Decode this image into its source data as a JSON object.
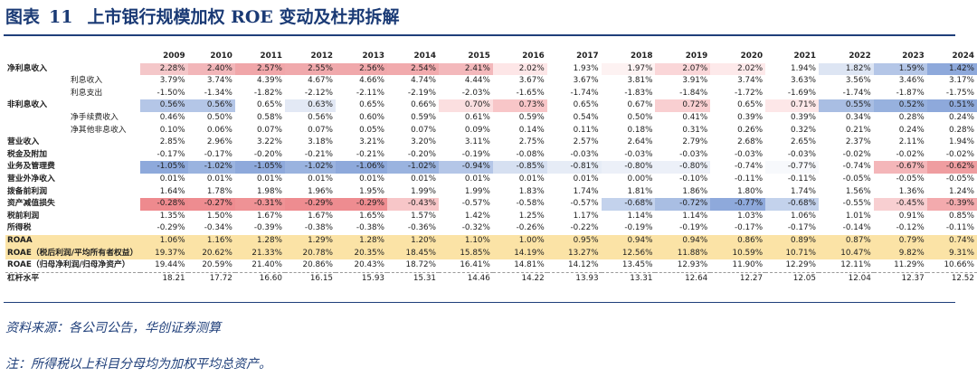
{
  "title": {
    "prefix": "图表",
    "number": "11",
    "text": "上市银行规模加权 ROE 变动及杜邦拆解"
  },
  "table": {
    "columns": [
      "2009",
      "2010",
      "2011",
      "2012",
      "2013",
      "2014",
      "2015",
      "2016",
      "2017",
      "2018",
      "2019",
      "2020",
      "2021",
      "2022",
      "2023",
      "2024"
    ],
    "rows": [
      {
        "label": "净利息收入",
        "style": "bold",
        "values": [
          "2.28%",
          "2.40%",
          "2.57%",
          "2.55%",
          "2.56%",
          "2.54%",
          "2.41%",
          "2.02%",
          "1.93%",
          "1.97%",
          "2.07%",
          "2.02%",
          "1.94%",
          "1.82%",
          "1.59%",
          "1.42%"
        ],
        "colors": [
          "#f4c7c9",
          "#f2b6b9",
          "#f0a6a9",
          "#f0a9ac",
          "#f0a8ab",
          "#f1aaad",
          "#f3b8bb",
          "#fde6e7",
          "#ffffff",
          "#fdf2f2",
          "#fad6d8",
          "#fde9ea",
          "#ffffff",
          "#dde5f3",
          "#b4c6e7",
          "#8ea9db"
        ]
      },
      {
        "label": "利息收入",
        "style": "sub",
        "values": [
          "3.79%",
          "3.74%",
          "4.39%",
          "4.67%",
          "4.66%",
          "4.74%",
          "4.44%",
          "3.67%",
          "3.67%",
          "3.81%",
          "3.91%",
          "3.74%",
          "3.63%",
          "3.56%",
          "3.46%",
          "3.17%"
        ]
      },
      {
        "label": "利息支出",
        "style": "sub",
        "values": [
          "-1.50%",
          "-1.34%",
          "-1.82%",
          "-2.12%",
          "-2.11%",
          "-2.19%",
          "-2.03%",
          "-1.65%",
          "-1.74%",
          "-1.83%",
          "-1.84%",
          "-1.72%",
          "-1.69%",
          "-1.74%",
          "-1.87%",
          "-1.75%"
        ]
      },
      {
        "label": "非利息收入",
        "style": "bold",
        "values": [
          "0.56%",
          "0.56%",
          "0.65%",
          "0.63%",
          "0.65%",
          "0.66%",
          "0.70%",
          "0.73%",
          "0.65%",
          "0.67%",
          "0.72%",
          "0.65%",
          "0.71%",
          "0.55%",
          "0.52%",
          "0.51%"
        ],
        "colors": [
          "#b4c6e7",
          "#b4c6e7",
          "#ffffff",
          "#e3e9f5",
          "#ffffff",
          "#ffffff",
          "#fbdfe0",
          "#f8c6c8",
          "#ffffff",
          "#ffffff",
          "#f9cfd1",
          "#ffffff",
          "#fde7e8",
          "#a9bee3",
          "#97b1de",
          "#8ea9db"
        ]
      },
      {
        "label": "净手续费收入",
        "style": "sub",
        "values": [
          "0.46%",
          "0.50%",
          "0.58%",
          "0.56%",
          "0.60%",
          "0.59%",
          "0.61%",
          "0.59%",
          "0.54%",
          "0.50%",
          "0.41%",
          "0.39%",
          "0.39%",
          "0.34%",
          "0.28%",
          "0.24%"
        ]
      },
      {
        "label": "净其他非息收入",
        "style": "sub",
        "values": [
          "0.10%",
          "0.06%",
          "0.07%",
          "0.07%",
          "0.05%",
          "0.07%",
          "0.09%",
          "0.14%",
          "0.11%",
          "0.18%",
          "0.31%",
          "0.26%",
          "0.32%",
          "0.21%",
          "0.24%",
          "0.28%"
        ]
      },
      {
        "label": "营业收入",
        "style": "bold",
        "values": [
          "2.85%",
          "2.96%",
          "3.22%",
          "3.18%",
          "3.21%",
          "3.20%",
          "3.11%",
          "2.75%",
          "2.57%",
          "2.64%",
          "2.79%",
          "2.68%",
          "2.65%",
          "2.37%",
          "2.11%",
          "1.94%"
        ]
      },
      {
        "label": "税金及附加",
        "style": "bold",
        "values": [
          "-0.17%",
          "-0.17%",
          "-0.20%",
          "-0.21%",
          "-0.21%",
          "-0.20%",
          "-0.19%",
          "-0.08%",
          "-0.03%",
          "-0.03%",
          "-0.03%",
          "-0.03%",
          "-0.03%",
          "-0.02%",
          "-0.02%",
          "-0.02%"
        ]
      },
      {
        "label": "业务及管理费",
        "style": "bold",
        "values": [
          "-1.05%",
          "-1.02%",
          "-1.05%",
          "-1.02%",
          "-1.06%",
          "-1.02%",
          "-0.94%",
          "-0.85%",
          "-0.81%",
          "-0.80%",
          "-0.80%",
          "-0.74%",
          "-0.77%",
          "-0.74%",
          "-0.67%",
          "-0.62%"
        ],
        "colors": [
          "#8ea9db",
          "#9ab3df",
          "#8ea9db",
          "#9ab3df",
          "#8ea9db",
          "#9ab3df",
          "#b4c6e7",
          "#d6e0f1",
          "#e6ecf6",
          "#ecf0f8",
          "#ecf0f8",
          "#ffffff",
          "#f7f9fc",
          "#ffffff",
          "#f4b6b9",
          "#ef9da0"
        ]
      },
      {
        "label": "营业外净收入",
        "style": "bold",
        "values": [
          "0.01%",
          "0.01%",
          "0.01%",
          "0.01%",
          "0.01%",
          "0.01%",
          "0.01%",
          "0.01%",
          "0.01%",
          "0.00%",
          "-0.10%",
          "-0.11%",
          "-0.11%",
          "-0.05%",
          "-0.05%",
          "-0.05%"
        ]
      },
      {
        "label": "拨备前利润",
        "style": "bold",
        "values": [
          "1.64%",
          "1.78%",
          "1.98%",
          "1.96%",
          "1.95%",
          "1.99%",
          "1.99%",
          "1.83%",
          "1.74%",
          "1.81%",
          "1.86%",
          "1.80%",
          "1.74%",
          "1.56%",
          "1.36%",
          "1.24%"
        ]
      },
      {
        "label": "资产减值损失",
        "style": "bold",
        "values": [
          "-0.28%",
          "-0.27%",
          "-0.31%",
          "-0.29%",
          "-0.29%",
          "-0.43%",
          "-0.57%",
          "-0.58%",
          "-0.57%",
          "-0.68%",
          "-0.72%",
          "-0.77%",
          "-0.68%",
          "-0.55%",
          "-0.45%",
          "-0.39%"
        ],
        "colors": [
          "#ee8a8e",
          "#ee8c90",
          "#ef9295",
          "#ee8c90",
          "#ee8c90",
          "#f7c6c8",
          "#ffffff",
          "#ffffff",
          "#ffffff",
          "#c3d2ec",
          "#a9bee3",
          "#8ea9db",
          "#c3d2ec",
          "#ffffff",
          "#f8cfd1",
          "#f3aaad"
        ]
      },
      {
        "label": "税前利润",
        "style": "bold",
        "values": [
          "1.35%",
          "1.50%",
          "1.67%",
          "1.67%",
          "1.65%",
          "1.57%",
          "1.42%",
          "1.25%",
          "1.17%",
          "1.14%",
          "1.14%",
          "1.03%",
          "1.06%",
          "1.01%",
          "0.91%",
          "0.85%"
        ]
      },
      {
        "label": "所得税",
        "style": "bold",
        "values": [
          "-0.29%",
          "-0.34%",
          "-0.39%",
          "-0.38%",
          "-0.38%",
          "-0.36%",
          "-0.32%",
          "-0.26%",
          "-0.22%",
          "-0.19%",
          "-0.19%",
          "-0.17%",
          "-0.17%",
          "-0.14%",
          "-0.12%",
          "-0.11%"
        ]
      },
      {
        "label": "ROAA",
        "style": "gold",
        "values": [
          "1.06%",
          "1.16%",
          "1.28%",
          "1.29%",
          "1.28%",
          "1.20%",
          "1.10%",
          "1.00%",
          "0.95%",
          "0.94%",
          "0.94%",
          "0.86%",
          "0.89%",
          "0.87%",
          "0.79%",
          "0.74%"
        ]
      },
      {
        "label": "ROAE（税后利润/平均所有者权益）",
        "style": "gold",
        "values": [
          "19.37%",
          "20.62%",
          "21.33%",
          "20.78%",
          "20.35%",
          "18.45%",
          "15.85%",
          "14.19%",
          "13.27%",
          "12.56%",
          "11.88%",
          "10.59%",
          "10.71%",
          "10.47%",
          "9.82%",
          "9.31%"
        ]
      },
      {
        "label": "ROAE（归母净利润/归母净资产）",
        "style": "boldline",
        "values": [
          "19.44%",
          "20.59%",
          "21.40%",
          "20.86%",
          "20.43%",
          "18.72%",
          "16.41%",
          "14.81%",
          "14.12%",
          "13.45%",
          "12.93%",
          "11.90%",
          "12.29%",
          "12.11%",
          "11.29%",
          "10.66%"
        ]
      },
      {
        "label": "杠杆水平",
        "style": "bold",
        "values": [
          "18.21",
          "17.72",
          "16.60",
          "16.15",
          "15.93",
          "15.31",
          "14.46",
          "14.22",
          "13.93",
          "13.31",
          "12.64",
          "12.27",
          "12.05",
          "12.04",
          "12.37",
          "12.52"
        ]
      }
    ]
  },
  "notes": {
    "source": "资料来源：各公司公告，华创证券测算",
    "footnote": "注：所得税以上科目分母均为加权平均总资产。"
  }
}
